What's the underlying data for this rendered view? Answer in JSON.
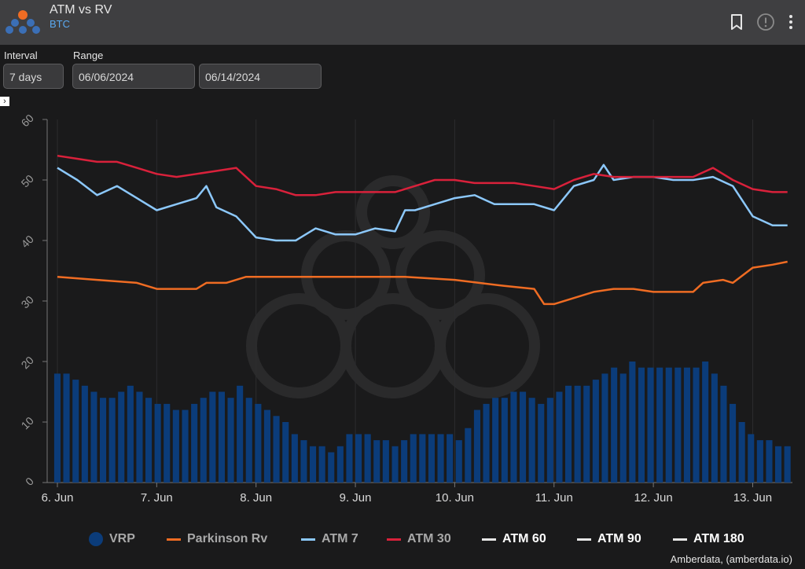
{
  "header": {
    "title": "ATM vs RV",
    "subtitle": "BTC",
    "icons": [
      "bookmark-icon",
      "alert-info-icon",
      "more-vertical-icon"
    ]
  },
  "controls": {
    "interval_label": "Interval",
    "interval_value": "7 days",
    "range_label": "Range",
    "range_start": "06/06/2024",
    "range_end": "06/14/2024"
  },
  "colors": {
    "VRP": "#0b3c7a",
    "Parkinson Rv": "#ef6c23",
    "ATM 7": "#8cc8fb",
    "ATM 30": "#d9213b",
    "ATM 60": "#e6e6e6",
    "ATM 90": "#e6e6e6",
    "ATM 180": "#e6e6e6"
  },
  "chart_data": {
    "type": "line",
    "title": "",
    "xlabel": "",
    "ylabel": "",
    "ylim": [
      0,
      60
    ],
    "yticks": [
      0,
      10,
      20,
      30,
      40,
      50,
      60
    ],
    "xlim": [
      0,
      7.4
    ],
    "xticks": [
      {
        "x": 0,
        "label": "6. Jun"
      },
      {
        "x": 1,
        "label": "7. Jun"
      },
      {
        "x": 2,
        "label": "8. Jun"
      },
      {
        "x": 3,
        "label": "9. Jun"
      },
      {
        "x": 4,
        "label": "10. Jun"
      },
      {
        "x": 5,
        "label": "11. Jun"
      },
      {
        "x": 6,
        "label": "12. Jun"
      },
      {
        "x": 7,
        "label": "13. Jun"
      }
    ],
    "grid": "vertical",
    "legend_position": "bottom",
    "series": [
      {
        "name": "ATM 30",
        "type": "line",
        "x": [
          0,
          0.2,
          0.4,
          0.6,
          0.8,
          1.0,
          1.2,
          1.4,
          1.6,
          1.8,
          2.0,
          2.2,
          2.4,
          2.6,
          2.8,
          3.0,
          3.2,
          3.4,
          3.6,
          3.8,
          4.0,
          4.2,
          4.4,
          4.6,
          4.8,
          5.0,
          5.2,
          5.4,
          5.6,
          5.8,
          6.0,
          6.2,
          6.4,
          6.6,
          6.8,
          7.0,
          7.2,
          7.35
        ],
        "values": [
          54,
          53.5,
          53,
          53,
          52,
          51,
          50.5,
          51,
          51.5,
          52,
          49,
          48.5,
          47.5,
          47.5,
          48,
          48,
          48,
          48,
          49,
          50,
          50,
          49.5,
          49.5,
          49.5,
          49,
          48.5,
          50,
          51,
          50.5,
          50.5,
          50.5,
          50.5,
          50.5,
          52,
          50,
          48.5,
          48,
          48
        ]
      },
      {
        "name": "ATM 7",
        "type": "line",
        "x": [
          0,
          0.2,
          0.4,
          0.6,
          0.8,
          1.0,
          1.2,
          1.4,
          1.5,
          1.6,
          1.8,
          2.0,
          2.2,
          2.4,
          2.6,
          2.8,
          3.0,
          3.2,
          3.4,
          3.5,
          3.6,
          3.8,
          4.0,
          4.2,
          4.4,
          4.6,
          4.8,
          5.0,
          5.2,
          5.4,
          5.5,
          5.6,
          5.8,
          6.0,
          6.2,
          6.4,
          6.6,
          6.8,
          7.0,
          7.2,
          7.35
        ],
        "values": [
          52,
          50,
          47.5,
          49,
          47,
          45,
          46,
          47,
          49,
          45.5,
          44,
          40.5,
          40,
          40,
          42,
          41,
          41,
          42,
          41.5,
          45,
          45,
          46,
          47,
          47.5,
          46,
          46,
          46,
          45,
          49,
          50,
          52.5,
          50,
          50.5,
          50.5,
          50,
          50,
          50.5,
          49,
          44,
          42.5,
          42.5
        ]
      },
      {
        "name": "Parkinson Rv",
        "type": "line",
        "x": [
          0,
          0.4,
          0.8,
          1.0,
          1.4,
          1.5,
          1.7,
          1.9,
          2.0,
          2.5,
          3.0,
          3.5,
          4.0,
          4.5,
          4.8,
          4.9,
          5.0,
          5.2,
          5.4,
          5.6,
          5.8,
          6.0,
          6.2,
          6.4,
          6.5,
          6.7,
          6.8,
          7.0,
          7.2,
          7.35
        ],
        "values": [
          34,
          33.5,
          33,
          32,
          32,
          33,
          33,
          34,
          34,
          34,
          34,
          34,
          33.5,
          32.5,
          32,
          29.5,
          29.5,
          30.5,
          31.5,
          32,
          32,
          31.5,
          31.5,
          31.5,
          33,
          33.5,
          33,
          35.5,
          36,
          36.5
        ]
      },
      {
        "name": "VRP",
        "type": "bar",
        "values": [
          18,
          18,
          17,
          16,
          15,
          14,
          14,
          15,
          16,
          15,
          14,
          13,
          13,
          12,
          12,
          13,
          14,
          15,
          15,
          14,
          16,
          14,
          13,
          12,
          11,
          10,
          8,
          7,
          6,
          6,
          5,
          6,
          8,
          8,
          8,
          7,
          7,
          6,
          7,
          8,
          8,
          8,
          8,
          8,
          7,
          9,
          12,
          13,
          14,
          14,
          15,
          15,
          14,
          13,
          14,
          15,
          16,
          16,
          16,
          17,
          18,
          19,
          18,
          20,
          19,
          19,
          19,
          19,
          19,
          19,
          19,
          20,
          18,
          16,
          13,
          10,
          8,
          7,
          7,
          6,
          6
        ]
      },
      {
        "name": "ATM 60",
        "type": "line",
        "values": []
      },
      {
        "name": "ATM 90",
        "type": "line",
        "values": []
      },
      {
        "name": "ATM 180",
        "type": "line",
        "values": []
      }
    ]
  },
  "legend": {
    "items": [
      "VRP",
      "Parkinson Rv",
      "ATM 7",
      "ATM 30",
      "ATM 60",
      "ATM 90",
      "ATM 180"
    ]
  },
  "credit": "Amberdata, (amberdata.io)"
}
